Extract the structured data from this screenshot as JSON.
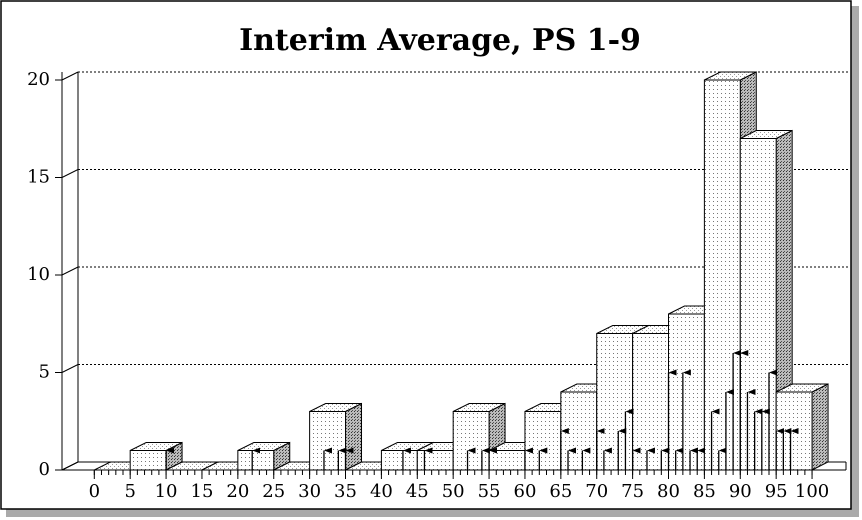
{
  "chart_data": {
    "type": "histogram3d",
    "title": "Interim Average, PS 1-9",
    "bins": [
      0,
      5,
      10,
      15,
      20,
      25,
      30,
      35,
      40,
      45,
      50,
      55,
      60,
      65,
      70,
      75,
      80,
      85,
      90,
      95,
      100
    ],
    "values": [
      0,
      1,
      0,
      0,
      1,
      0,
      3,
      0,
      1,
      1,
      3,
      1,
      3,
      4,
      7,
      7,
      8,
      20,
      17,
      4
    ],
    "xlim": [
      -4.5,
      102.5
    ],
    "xticks": [
      0,
      5,
      10,
      15,
      20,
      25,
      30,
      35,
      40,
      45,
      50,
      55,
      60,
      65,
      70,
      75,
      80,
      85,
      90,
      95,
      100
    ],
    "xminorticks": [
      0,
      1,
      2,
      3,
      4,
      5,
      6,
      7,
      8,
      9,
      10,
      11,
      12,
      13,
      14,
      15,
      16,
      17,
      18,
      19,
      20,
      21,
      22,
      23,
      24,
      25,
      26,
      27,
      28,
      29,
      30,
      31,
      32,
      33,
      34,
      35,
      36,
      37,
      38,
      39,
      40,
      41,
      42,
      43,
      44,
      45,
      46,
      47,
      48,
      49,
      50,
      51,
      52,
      53,
      54,
      55,
      56,
      57,
      58,
      59,
      60,
      61,
      62,
      63,
      64,
      65,
      66,
      67,
      68,
      69,
      70,
      71,
      72,
      73,
      74,
      75,
      76,
      77,
      78,
      79,
      80,
      81,
      82,
      83,
      84,
      85,
      86,
      87,
      88,
      89,
      90,
      91,
      92,
      93,
      94,
      95,
      96,
      97,
      98,
      99,
      100
    ],
    "ylim": [
      0,
      20
    ],
    "yticks": [
      0,
      5,
      10,
      15,
      20
    ],
    "grid": true,
    "arrows": {
      "x": [
        10,
        22,
        32,
        34,
        35,
        43,
        46,
        52,
        54,
        55,
        60,
        62,
        65,
        66,
        68,
        70,
        71,
        73,
        74,
        75,
        77,
        79,
        80,
        81,
        82,
        83,
        84,
        86,
        87,
        88,
        89,
        90,
        91,
        92,
        93,
        94,
        95,
        96,
        97
      ],
      "values": [
        1,
        1,
        1,
        1,
        1,
        1,
        1,
        1,
        1,
        1,
        1,
        1,
        2,
        1,
        1,
        2,
        1,
        2,
        3,
        1,
        1,
        1,
        5,
        1,
        5,
        1,
        1,
        3,
        1,
        4,
        6,
        6,
        4,
        3,
        3,
        5,
        2,
        2,
        2
      ]
    }
  }
}
